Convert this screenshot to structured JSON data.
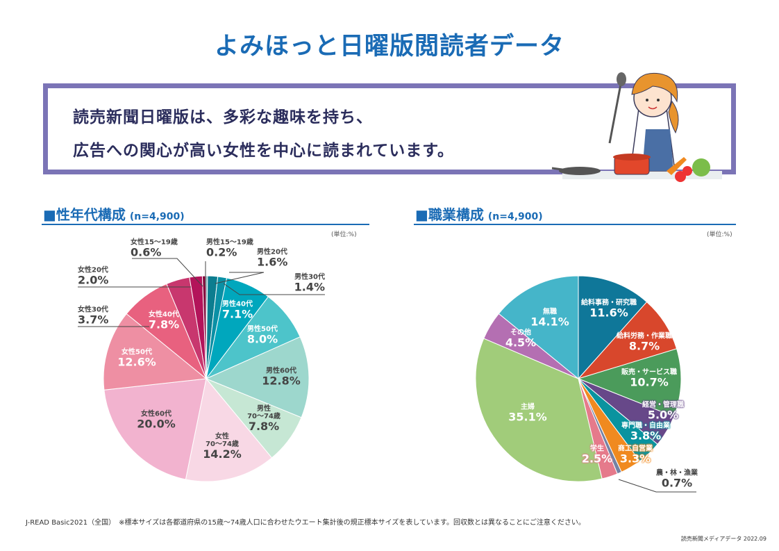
{
  "header": {
    "title": "よみほっと日曜版閲読者データ"
  },
  "message": {
    "line1": "読売新聞日曜版は、多彩な趣味を持ち、",
    "line2": "広告への関心が高い女性を中心に読まれています。"
  },
  "sections": {
    "left": {
      "title": "■性年代構成",
      "n": "(n=4,900)",
      "unit": "(単位:%)"
    },
    "right": {
      "title": "■職業構成",
      "n": "(n=4,900)",
      "unit": "(単位:%)"
    }
  },
  "chart_data": [
    {
      "type": "pie",
      "title": "性年代構成",
      "unit": "%",
      "start": "top",
      "direction": "clockwise",
      "slices": [
        {
          "label": "男性15～19歳",
          "value": 0.2,
          "color": "#0a6576"
        },
        {
          "label": "男性20代",
          "value": 1.6,
          "color": "#0c7d8f"
        },
        {
          "label": "男性30代",
          "value": 1.4,
          "color": "#0a90a5"
        },
        {
          "label": "男性40代",
          "value": 7.1,
          "color": "#00a7bd"
        },
        {
          "label": "男性50代",
          "value": 8.0,
          "color": "#4dc4ca"
        },
        {
          "label": "男性60代",
          "value": 12.8,
          "color": "#9dd7cd"
        },
        {
          "label": "男性\n70～74歳",
          "value": 7.8,
          "color": "#c6e7d4"
        },
        {
          "label": "女性\n70～74歳",
          "value": 14.2,
          "color": "#f8d8e5"
        },
        {
          "label": "女性60代",
          "value": 20.0,
          "color": "#f2b3cf"
        },
        {
          "label": "女性50代",
          "value": 12.6,
          "color": "#ee8fa3"
        },
        {
          "label": "女性40代",
          "value": 7.8,
          "color": "#e8617f"
        },
        {
          "label": "女性30代",
          "value": 3.7,
          "color": "#c8376e"
        },
        {
          "label": "女性20代",
          "value": 2.0,
          "color": "#b3145a"
        },
        {
          "label": "女性15～19歳",
          "value": 0.6,
          "color": "#861040"
        }
      ]
    },
    {
      "type": "pie",
      "title": "職業構成",
      "unit": "%",
      "start": "top",
      "direction": "clockwise",
      "slices": [
        {
          "label": "給料事務・研究職",
          "value": 11.6,
          "color": "#0f7799"
        },
        {
          "label": "給料労務・作業職",
          "value": 8.7,
          "color": "#d8472c"
        },
        {
          "label": "販売・サービス職",
          "value": 10.7,
          "color": "#4b9b5b"
        },
        {
          "label": "経営・管理職",
          "value": 5.0,
          "color": "#674889"
        },
        {
          "label": "専門職・自由業",
          "value": 3.8,
          "color": "#0a939f"
        },
        {
          "label": "商工自営業",
          "value": 3.3,
          "color": "#f08a20"
        },
        {
          "label": "農・林・漁業",
          "value": 0.7,
          "color": "#7482a4"
        },
        {
          "label": "学生",
          "value": 2.5,
          "color": "#e57a8b"
        },
        {
          "label": "主婦",
          "value": 35.1,
          "color": "#a1cc7a"
        },
        {
          "label": "その他",
          "value": 4.5,
          "color": "#b46fb2"
        },
        {
          "label": "無職",
          "value": 14.1,
          "color": "#45b5c9"
        }
      ]
    }
  ],
  "footer": {
    "note": "J-READ Basic2021（全国）　※標本サイズは各都道府県の15歳～74歳人口に合わせたウエート集計後の規正標本サイズを表しています。回収数とは異なることにご注意ください。",
    "source": "読売新聞メディアデータ 2022.09"
  }
}
